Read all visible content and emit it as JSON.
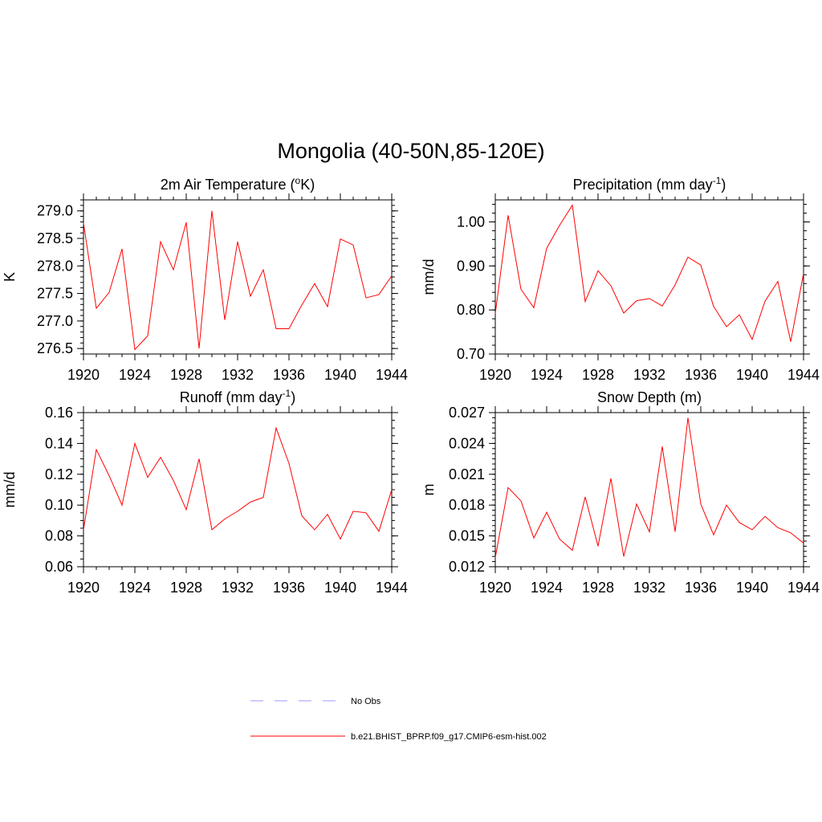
{
  "figure": {
    "title": "Mongolia (40-50N,85-120E)"
  },
  "legend": {
    "entries": [
      {
        "label": "No Obs",
        "color": "#9999ff",
        "dash": "dashed"
      },
      {
        "label": "b.e21.BHIST_BPRP.f09_g17.CMIP6-esm-hist.002",
        "color": "#ff0000",
        "dash": "solid"
      }
    ]
  },
  "chart_data": [
    {
      "type": "line",
      "title_main": "2m Air Temperature (",
      "title_sup_before": "o",
      "title_after": "K)",
      "ylabel": "K",
      "xlim": [
        1920,
        1944
      ],
      "ylim": [
        276.4,
        279.2
      ],
      "yticks": [
        276.5,
        277.0,
        277.5,
        278.0,
        278.5,
        279.0
      ],
      "ytick_labels": [
        "276.5",
        "277.0",
        "277.5",
        "278.0",
        "278.5",
        "279.0"
      ],
      "xticks": [
        1920,
        1924,
        1928,
        1932,
        1936,
        1940,
        1944
      ],
      "xtick_labels": [
        "1920",
        "1924",
        "1928",
        "1932",
        "1936",
        "1940",
        "1944"
      ],
      "yminor_step": 0.1,
      "xminor_step": 1,
      "series": [
        {
          "color": "#ff0000",
          "x": [
            1920,
            1921,
            1922,
            1923,
            1924,
            1925,
            1926,
            1927,
            1928,
            1929,
            1930,
            1931,
            1932,
            1933,
            1934,
            1935,
            1936,
            1937,
            1938,
            1939,
            1940,
            1941,
            1942,
            1943,
            1944
          ],
          "y": [
            278.78,
            277.23,
            277.52,
            278.31,
            276.48,
            276.73,
            278.44,
            277.93,
            278.79,
            276.5,
            279.0,
            277.02,
            278.44,
            277.45,
            277.93,
            276.86,
            276.86,
            277.29,
            277.68,
            277.26,
            278.49,
            278.38,
            277.42,
            277.48,
            277.82
          ]
        }
      ]
    },
    {
      "type": "line",
      "title_main": "Precipitation (mm day",
      "title_sup": "-1",
      "title_after": ")",
      "ylabel": "mm/d",
      "xlim": [
        1920,
        1944
      ],
      "ylim": [
        0.7,
        1.05
      ],
      "yticks": [
        0.7,
        0.8,
        0.9,
        1.0
      ],
      "ytick_labels": [
        "0.70",
        "0.80",
        "0.90",
        "1.00"
      ],
      "xticks": [
        1920,
        1924,
        1928,
        1932,
        1936,
        1940,
        1944
      ],
      "xtick_labels": [
        "1920",
        "1924",
        "1928",
        "1932",
        "1936",
        "1940",
        "1944"
      ],
      "yminor_step": 0.02,
      "xminor_step": 1,
      "series": [
        {
          "color": "#ff0000",
          "x": [
            1920,
            1921,
            1922,
            1923,
            1924,
            1925,
            1926,
            1927,
            1928,
            1929,
            1930,
            1931,
            1932,
            1933,
            1934,
            1935,
            1936,
            1937,
            1938,
            1939,
            1940,
            1941,
            1942,
            1943,
            1944
          ],
          "y": [
            0.792,
            1.015,
            0.847,
            0.805,
            0.94,
            0.992,
            1.038,
            0.819,
            0.889,
            0.855,
            0.793,
            0.821,
            0.826,
            0.809,
            0.857,
            0.92,
            0.902,
            0.808,
            0.762,
            0.789,
            0.733,
            0.82,
            0.865,
            0.728,
            0.883
          ]
        }
      ]
    },
    {
      "type": "line",
      "title_main": "Runoff (mm day",
      "title_sup": "-1",
      "title_after": ")",
      "ylabel": "mm/d",
      "xlim": [
        1920,
        1944
      ],
      "ylim": [
        0.06,
        0.16
      ],
      "yticks": [
        0.06,
        0.08,
        0.1,
        0.12,
        0.14,
        0.16
      ],
      "ytick_labels": [
        "0.06",
        "0.08",
        "0.10",
        "0.12",
        "0.14",
        "0.16"
      ],
      "xticks": [
        1920,
        1924,
        1928,
        1932,
        1936,
        1940,
        1944
      ],
      "xtick_labels": [
        "1920",
        "1924",
        "1928",
        "1932",
        "1936",
        "1940",
        "1944"
      ],
      "yminor_step": 0.005,
      "xminor_step": 1,
      "series": [
        {
          "color": "#ff0000",
          "x": [
            1920,
            1921,
            1922,
            1923,
            1924,
            1925,
            1926,
            1927,
            1928,
            1929,
            1930,
            1931,
            1932,
            1933,
            1934,
            1935,
            1936,
            1937,
            1938,
            1939,
            1940,
            1941,
            1942,
            1943,
            1944
          ],
          "y": [
            0.084,
            0.136,
            0.119,
            0.1,
            0.14,
            0.118,
            0.131,
            0.116,
            0.097,
            0.13,
            0.084,
            0.091,
            0.096,
            0.102,
            0.105,
            0.15,
            0.127,
            0.093,
            0.084,
            0.094,
            0.078,
            0.096,
            0.095,
            0.083,
            0.11
          ]
        }
      ]
    },
    {
      "type": "line",
      "title_main": "Snow Depth (m)",
      "ylabel": "m",
      "xlim": [
        1920,
        1944
      ],
      "ylim": [
        0.012,
        0.027
      ],
      "yticks": [
        0.012,
        0.015,
        0.018,
        0.021,
        0.024,
        0.027
      ],
      "ytick_labels": [
        "0.012",
        "0.015",
        "0.018",
        "0.021",
        "0.024",
        "0.027"
      ],
      "xticks": [
        1920,
        1924,
        1928,
        1932,
        1936,
        1940,
        1944
      ],
      "xtick_labels": [
        "1920",
        "1924",
        "1928",
        "1932",
        "1936",
        "1940",
        "1944"
      ],
      "yminor_step": 0.0005,
      "xminor_step": 1,
      "series": [
        {
          "color": "#ff0000",
          "x": [
            1920,
            1921,
            1922,
            1923,
            1924,
            1925,
            1926,
            1927,
            1928,
            1929,
            1930,
            1931,
            1932,
            1933,
            1934,
            1935,
            1936,
            1937,
            1938,
            1939,
            1940,
            1941,
            1942,
            1943,
            1944
          ],
          "y": [
            0.0129,
            0.0197,
            0.0184,
            0.0148,
            0.0173,
            0.0147,
            0.0136,
            0.0188,
            0.014,
            0.0206,
            0.013,
            0.0181,
            0.0154,
            0.0237,
            0.0154,
            0.0265,
            0.0181,
            0.0151,
            0.018,
            0.0163,
            0.0156,
            0.0169,
            0.0158,
            0.0153,
            0.0143
          ]
        }
      ]
    }
  ]
}
